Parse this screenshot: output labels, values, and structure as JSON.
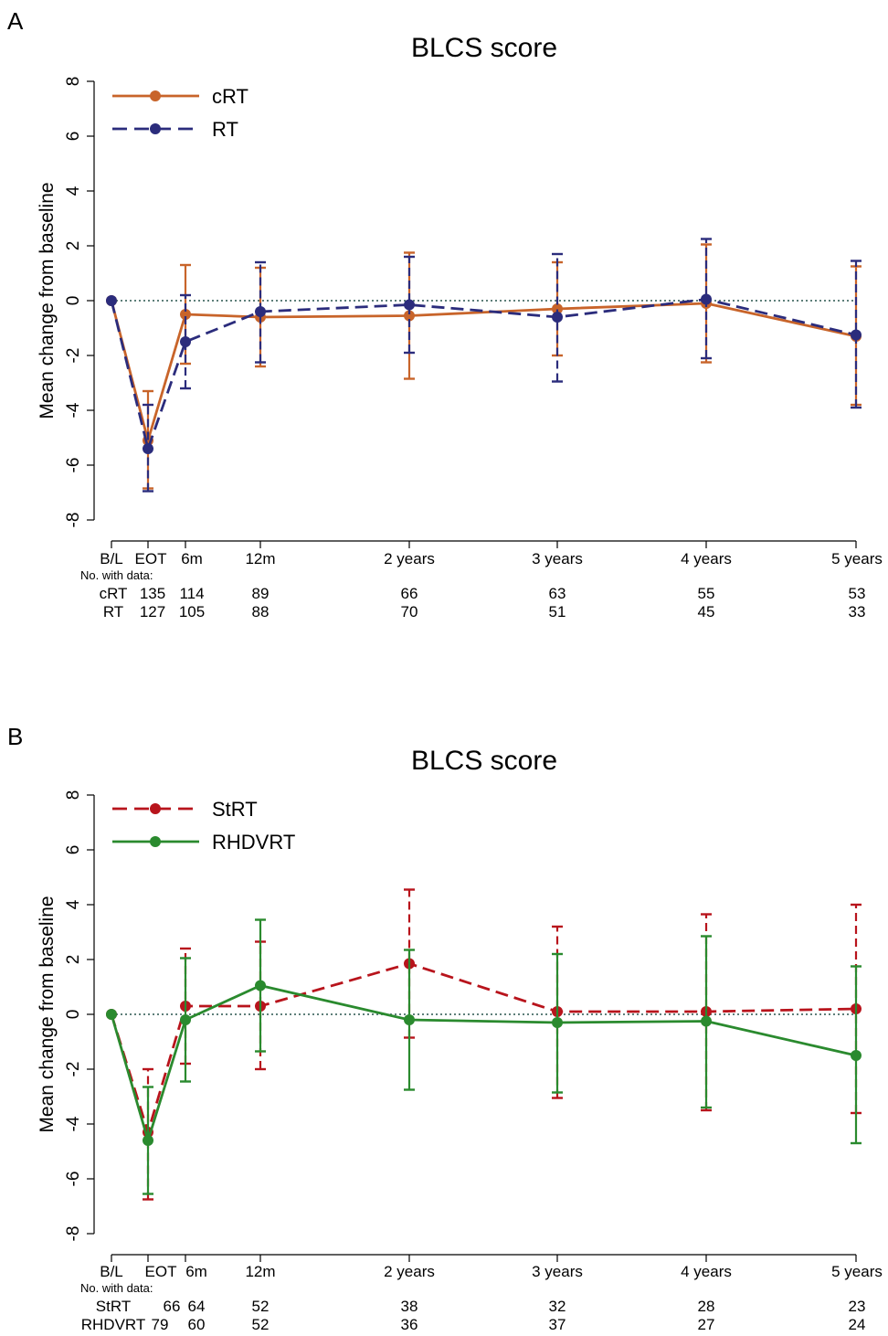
{
  "chart_data": [
    {
      "type": "line",
      "panel_label": "A",
      "title": "BLCS score",
      "ylabel": "Mean change from baseline",
      "xlabel": "",
      "ylim": [
        -8,
        8
      ],
      "yticks": [
        "8",
        "6",
        "4",
        "2",
        "0",
        "-2",
        "-4",
        "-6",
        "-8"
      ],
      "x_months": [
        0,
        3,
        6,
        12,
        24,
        36,
        48,
        60
      ],
      "categories": [
        "B/L",
        "EOT",
        "6m",
        "12m",
        "2 years",
        "3 years",
        "4 years",
        "5 years"
      ],
      "reference_line": 0,
      "legend_placement": "top-left",
      "series": [
        {
          "name": "cRT",
          "color": "#c8642a",
          "dash": "solid",
          "values": [
            0,
            -5.1,
            -0.5,
            -0.6,
            -0.55,
            -0.3,
            -0.1,
            -1.3
          ],
          "lower": [
            null,
            -6.85,
            -2.3,
            -2.4,
            -2.85,
            -2.0,
            -2.25,
            -3.8
          ],
          "upper": [
            null,
            -3.3,
            1.3,
            1.2,
            1.75,
            1.4,
            2.05,
            1.25
          ]
        },
        {
          "name": "RT",
          "color": "#2b2c7c",
          "dash": "dashed",
          "values": [
            0,
            -5.4,
            -1.5,
            -0.4,
            -0.15,
            -0.6,
            0.05,
            -1.25
          ],
          "lower": [
            null,
            -6.95,
            -3.2,
            -2.25,
            -1.9,
            -2.95,
            -2.1,
            -3.9
          ],
          "upper": [
            null,
            -3.8,
            0.2,
            1.4,
            1.6,
            1.7,
            2.25,
            1.45
          ]
        }
      ],
      "counts_title": "No. with data:",
      "counts": [
        {
          "label": "cRT",
          "values": [
            "",
            "135",
            "114",
            "89",
            "66",
            "63",
            "55",
            "53"
          ]
        },
        {
          "label": "RT",
          "values": [
            "",
            "127",
            "105",
            "88",
            "70",
            "51",
            "45",
            "33"
          ]
        }
      ]
    },
    {
      "type": "line",
      "panel_label": "B",
      "title": "BLCS  score",
      "ylabel": "Mean change from baseline",
      "xlabel": "",
      "ylim": [
        -8,
        8
      ],
      "yticks": [
        "8",
        "6",
        "4",
        "2",
        "0",
        "-2",
        "-4",
        "-6",
        "-8"
      ],
      "x_months": [
        0,
        3,
        6,
        12,
        24,
        36,
        48,
        60
      ],
      "categories": [
        "B/L",
        "EOT",
        "6m",
        "12m",
        "2 years",
        "3 years",
        "4 years",
        "5 years"
      ],
      "reference_line": 0,
      "legend_placement": "top-left",
      "series": [
        {
          "name": "StRT",
          "color": "#b8141c",
          "dash": "dashed",
          "values": [
            0,
            -4.3,
            0.3,
            0.3,
            1.85,
            0.1,
            0.1,
            0.2
          ],
          "lower": [
            null,
            -6.75,
            -1.8,
            -2.0,
            -0.85,
            -3.05,
            -3.5,
            -3.6
          ],
          "upper": [
            null,
            -2.0,
            2.4,
            2.65,
            4.55,
            3.2,
            3.65,
            4.0
          ]
        },
        {
          "name": "RHDVRT",
          "color": "#2a8a2e",
          "dash": "solid",
          "values": [
            0,
            -4.6,
            -0.2,
            1.05,
            -0.2,
            -0.3,
            -0.25,
            -1.5
          ],
          "lower": [
            null,
            -6.55,
            -2.45,
            -1.35,
            -2.75,
            -2.85,
            -3.4,
            -4.7
          ],
          "upper": [
            null,
            -2.65,
            2.05,
            3.45,
            2.35,
            2.2,
            2.85,
            1.75
          ]
        }
      ],
      "counts_title": "No. with data:",
      "counts": [
        {
          "label": "StRT",
          "values": [
            "",
            "66",
            "64",
            "52",
            "38",
            "32",
            "28",
            "23"
          ]
        },
        {
          "label": "RHDVRT",
          "values": [
            "79",
            "",
            "60",
            "52",
            "36",
            "37",
            "27",
            "24"
          ]
        }
      ]
    }
  ]
}
